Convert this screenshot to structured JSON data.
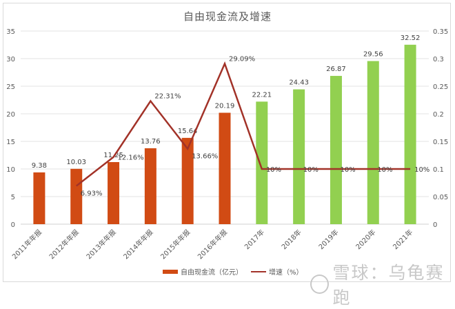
{
  "chart_data": {
    "type": "bar+line",
    "title": "自由现金流及增速",
    "categories": [
      "2011年年报",
      "2012年年报",
      "2013年年报",
      "2014年年报",
      "2015年年报",
      "2016年年报",
      "2017年",
      "2018年",
      "2019年",
      "2020年",
      "2021年"
    ],
    "series": [
      {
        "name": "自由现金流（亿元）",
        "type": "bar",
        "axis": "left",
        "values": [
          9.38,
          10.03,
          11.25,
          13.76,
          15.64,
          20.19,
          22.21,
          24.43,
          26.87,
          29.56,
          32.52
        ],
        "labels": [
          "9.38",
          "10.03",
          "11.25",
          "13.76",
          "15.64",
          "20.19",
          "22.21",
          "24.43",
          "26.87",
          "29.56",
          "32.52"
        ],
        "colors": [
          "#d14b14",
          "#d14b14",
          "#d14b14",
          "#d14b14",
          "#d14b14",
          "#d14b14",
          "#92d050",
          "#92d050",
          "#92d050",
          "#92d050",
          "#92d050"
        ]
      },
      {
        "name": "增速（%）",
        "type": "line",
        "axis": "right",
        "color": "#a23228",
        "values": [
          null,
          0.0693,
          0.1216,
          0.2231,
          0.1366,
          0.2909,
          0.1,
          0.1,
          0.1,
          0.1,
          0.1
        ],
        "labels": [
          "",
          "6.93%",
          "12.16%",
          "22.31%",
          "13.66%",
          "29.09%",
          "10%",
          "10%",
          "10%",
          "10%",
          "10%"
        ]
      }
    ],
    "left_axis": {
      "min": 0,
      "max": 35,
      "ticks": [
        "0",
        "5",
        "10",
        "15",
        "20",
        "25",
        "30",
        "35"
      ]
    },
    "right_axis": {
      "min": 0,
      "max": 0.35,
      "ticks": [
        "0",
        "0.05",
        "0.1",
        "0.15",
        "0.2",
        "0.25",
        "0.3",
        "0.35"
      ]
    },
    "grid": true,
    "legend_position": "bottom"
  },
  "legend": {
    "bar_label": "自由现金流（亿元）",
    "line_label": "增速（%）"
  },
  "watermark": "雪球：乌龟赛跑"
}
